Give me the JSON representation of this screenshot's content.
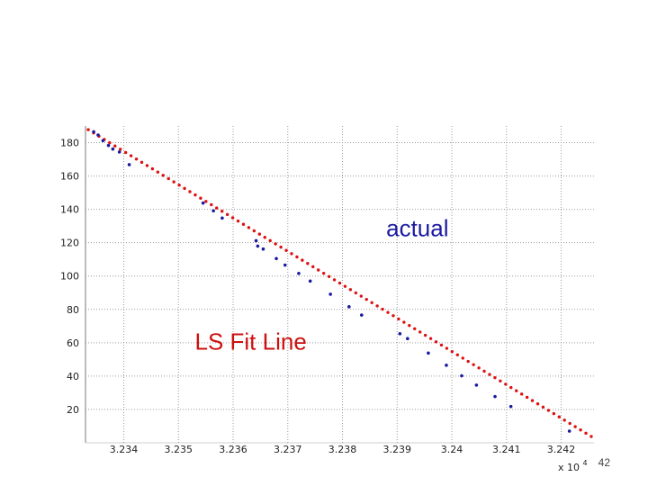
{
  "page": {
    "number": "42"
  },
  "colors": {
    "actual": "#1a1aa0",
    "fit": "#dd1111",
    "annot_actual": "#1a1aa0",
    "annot_fit": "#cc1111"
  },
  "chart_data": {
    "type": "scatter",
    "title": "",
    "xlabel": "",
    "ylabel": "",
    "x_multiplier_label": "x 10",
    "x_multiplier_exp": "4",
    "xlim": [
      32333,
      32426
    ],
    "ylim": [
      0,
      190
    ],
    "x_ticks": [
      32340,
      32350,
      32360,
      32370,
      32380,
      32390,
      32400,
      32410,
      32420
    ],
    "x_tick_labels": [
      "3.234",
      "3.235",
      "3.236",
      "3.237",
      "3.238",
      "3.239",
      "3.24",
      "3.241",
      "3.242"
    ],
    "y_ticks": [
      20,
      40,
      60,
      80,
      100,
      120,
      140,
      160,
      180
    ],
    "y_tick_labels": [
      "20",
      "40",
      "60",
      "80",
      "100",
      "120",
      "140",
      "160",
      "180"
    ],
    "grid": true,
    "annotations": [
      {
        "text": "actual",
        "x": 32388,
        "y": 124,
        "series": "actual"
      },
      {
        "text": "LS Fit Line",
        "x": 32353,
        "y": 56,
        "series": "fit"
      }
    ],
    "series": [
      {
        "name": "actual",
        "marker": "dot",
        "points": [
          [
            32334.5,
            186.5
          ],
          [
            32335.3,
            184.6
          ],
          [
            32336.2,
            181.2
          ],
          [
            32337.2,
            178.3
          ],
          [
            32338.0,
            176.2
          ],
          [
            32339.2,
            174.4
          ],
          [
            32341.0,
            166.8
          ],
          [
            32354.5,
            143.8
          ],
          [
            32356.4,
            139.1
          ],
          [
            32358.0,
            134.8
          ],
          [
            32364.2,
            121.2
          ],
          [
            32364.5,
            118.0
          ],
          [
            32365.5,
            116.2
          ],
          [
            32367.9,
            110.5
          ],
          [
            32369.5,
            106.6
          ],
          [
            32372.0,
            101.6
          ],
          [
            32374.1,
            97.0
          ],
          [
            32377.8,
            89.1
          ],
          [
            32381.2,
            81.6
          ],
          [
            32383.5,
            76.6
          ],
          [
            32390.5,
            65.4
          ],
          [
            32391.9,
            62.5
          ],
          [
            32395.7,
            53.8
          ],
          [
            32399.0,
            46.5
          ],
          [
            32401.8,
            40.2
          ],
          [
            32404.5,
            34.6
          ],
          [
            32407.9,
            27.7
          ],
          [
            32410.8,
            21.8
          ],
          [
            32421.5,
            7.0
          ]
        ]
      },
      {
        "name": "fit",
        "marker": "dot",
        "x_start": 32333.5,
        "x_end": 32425.5,
        "slope": -2.0,
        "intercept_at_x_start": 187.8,
        "n_points": 95
      }
    ]
  }
}
